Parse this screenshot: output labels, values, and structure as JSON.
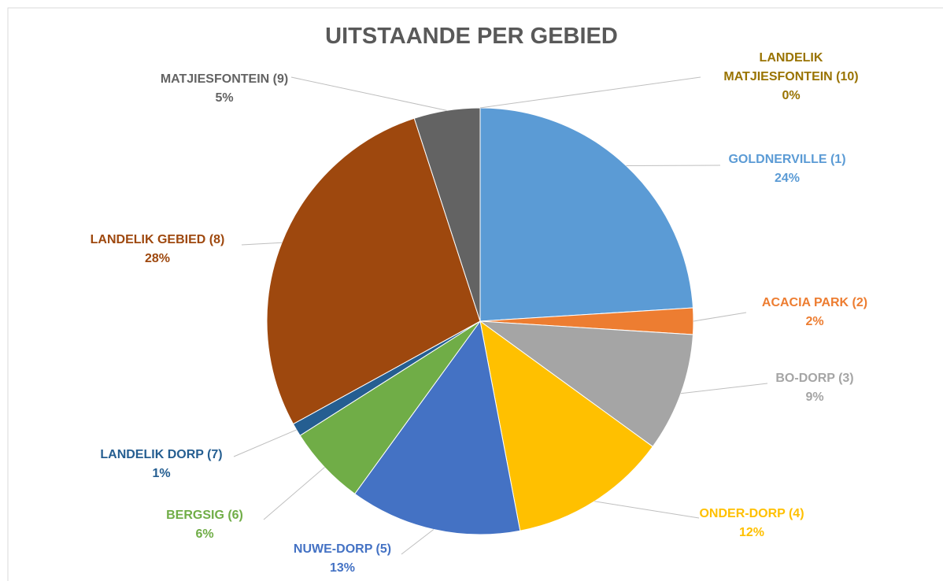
{
  "chart_data": {
    "type": "pie",
    "title": "UITSTAANDE PER GEBIED",
    "categories": [
      "GOLDNERVILLE (1)",
      "ACACIA PARK (2)",
      "BO-DORP (3)",
      "ONDER-DORP (4)",
      "NUWE-DORP (5)",
      "BERGSIG (6)",
      "LANDELIK DORP (7)",
      "LANDELIK GEBIED (8)",
      "MATJIESFONTEIN (9)",
      "LANDELIK MATJIESFONTEIN (10)"
    ],
    "values": [
      24,
      2,
      9,
      12,
      13,
      6,
      1,
      28,
      5,
      0
    ],
    "value_labels": [
      "24%",
      "2%",
      "9%",
      "12%",
      "13%",
      "6%",
      "1%",
      "28%",
      "5%",
      "0%"
    ],
    "colors": [
      "#5b9bd5",
      "#ed7d31",
      "#a5a5a5",
      "#ffc000",
      "#4472c4",
      "#70ad47",
      "#255e91",
      "#9e480e",
      "#636363",
      "#997300"
    ]
  }
}
